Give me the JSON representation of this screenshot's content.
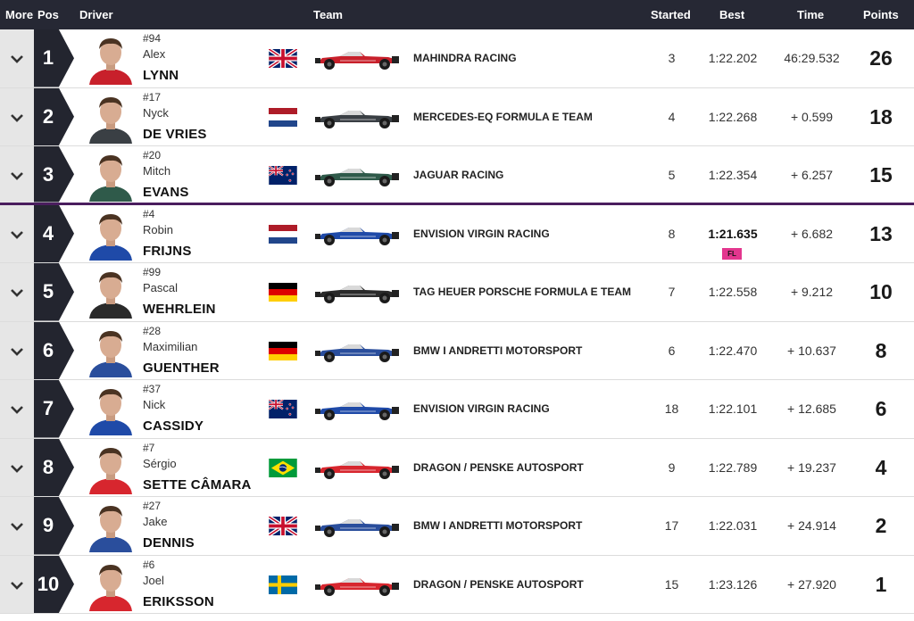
{
  "header": {
    "more": "More",
    "pos": "Pos",
    "driver": "Driver",
    "team": "Team",
    "started": "Started",
    "best": "Best",
    "time": "Time",
    "points": "Points"
  },
  "fastest_lap_badge": "FL",
  "colors": {
    "header_bg": "#262834",
    "pos_bg": "#23252f",
    "podium_separator": "#4a1d5e",
    "fl_badge": "#e3368e"
  },
  "rows": [
    {
      "pos": "1",
      "number": "#94",
      "first": "Alex",
      "last": "LYNN",
      "flag": "uk-flag",
      "team": "MAHINDRA RACING",
      "car_livery": "#c8202b",
      "started": "3",
      "best": "1:22.202",
      "fastest": false,
      "time": "46:29.532",
      "points": "26"
    },
    {
      "pos": "2",
      "number": "#17",
      "first": "Nyck",
      "last": "DE VRIES",
      "flag": "netherlands-flag",
      "team": "MERCEDES-EQ FORMULA E TEAM",
      "car_livery": "#3a3f44",
      "started": "4",
      "best": "1:22.268",
      "fastest": false,
      "time": "+ 0.599",
      "points": "18"
    },
    {
      "pos": "3",
      "number": "#20",
      "first": "Mitch",
      "last": "EVANS",
      "flag": "new-zealand-flag",
      "team": "JAGUAR RACING",
      "car_livery": "#2f5a4a",
      "started": "5",
      "best": "1:22.354",
      "fastest": false,
      "time": "+ 6.257",
      "points": "15"
    },
    {
      "pos": "4",
      "number": "#4",
      "first": "Robin",
      "last": "FRIJNS",
      "flag": "netherlands-flag",
      "team": "ENVISION VIRGIN RACING",
      "car_livery": "#1f4aa8",
      "started": "8",
      "best": "1:21.635",
      "fastest": true,
      "time": "+ 6.682",
      "points": "13"
    },
    {
      "pos": "5",
      "number": "#99",
      "first": "Pascal",
      "last": "WEHRLEIN",
      "flag": "germany-flag",
      "team": "TAG HEUER PORSCHE FORMULA E TEAM",
      "car_livery": "#2a2a2a",
      "started": "7",
      "best": "1:22.558",
      "fastest": false,
      "time": "+ 9.212",
      "points": "10"
    },
    {
      "pos": "6",
      "number": "#28",
      "first": "Maximilian",
      "last": "GUENTHER",
      "flag": "germany-flag",
      "team": "BMW I ANDRETTI MOTORSPORT",
      "car_livery": "#2a4e9c",
      "started": "6",
      "best": "1:22.470",
      "fastest": false,
      "time": "+ 10.637",
      "points": "8"
    },
    {
      "pos": "7",
      "number": "#37",
      "first": "Nick",
      "last": "CASSIDY",
      "flag": "new-zealand-flag",
      "team": "ENVISION VIRGIN RACING",
      "car_livery": "#1f4aa8",
      "started": "18",
      "best": "1:22.101",
      "fastest": false,
      "time": "+ 12.685",
      "points": "6"
    },
    {
      "pos": "8",
      "number": "#7",
      "first": "Sérgio",
      "last": "SETTE CÂMARA",
      "flag": "brazil-flag",
      "team": "DRAGON / PENSKE AUTOSPORT",
      "car_livery": "#d7262e",
      "started": "9",
      "best": "1:22.789",
      "fastest": false,
      "time": "+ 19.237",
      "points": "4"
    },
    {
      "pos": "9",
      "number": "#27",
      "first": "Jake",
      "last": "DENNIS",
      "flag": "uk-flag",
      "team": "BMW I ANDRETTI MOTORSPORT",
      "car_livery": "#2a4e9c",
      "started": "17",
      "best": "1:22.031",
      "fastest": false,
      "time": "+ 24.914",
      "points": "2"
    },
    {
      "pos": "10",
      "number": "#6",
      "first": "Joel",
      "last": "ERIKSSON",
      "flag": "sweden-flag",
      "team": "DRAGON / PENSKE AUTOSPORT",
      "car_livery": "#d7262e",
      "started": "15",
      "best": "1:23.126",
      "fastest": false,
      "time": "+ 27.920",
      "points": "1"
    }
  ]
}
